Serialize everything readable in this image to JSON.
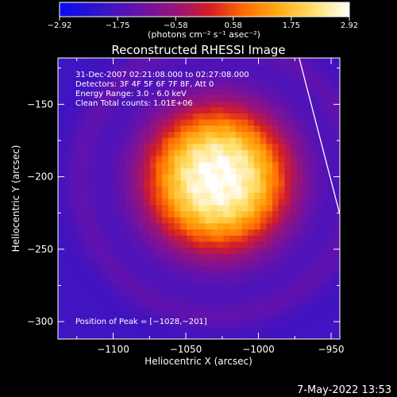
{
  "chart_data": {
    "type": "heatmap",
    "title": "Reconstructed RHESSI Image",
    "xlabel": "Heliocentric X (arcsec)",
    "ylabel": "Heliocentric Y (arcsec)",
    "xlim": [
      -1138,
      -944
    ],
    "ylim": [
      -312,
      -118
    ],
    "x_ticks": [
      -1100,
      -1050,
      -1000,
      -950
    ],
    "x_tick_labels": [
      "−1100",
      "−1050",
      "−1000",
      "−950"
    ],
    "y_ticks": [
      -150,
      -200,
      -250,
      -300
    ],
    "y_tick_labels": [
      "−150",
      "−200",
      "−250",
      "−300"
    ],
    "colorbar": {
      "min": -2.92,
      "max": 2.92,
      "tick_values": [
        -2.92,
        -1.75,
        -0.58,
        0.58,
        1.75,
        2.92
      ],
      "tick_labels": [
        "−2.92",
        "−1.75",
        "−0.58",
        "0.58",
        "1.75",
        "2.92"
      ],
      "unit_label": "(photons cm⁻² s⁻¹ asec⁻²)"
    },
    "source": {
      "peak_x": -1028,
      "peak_y": -201,
      "width_arcsec": 50,
      "peak_value": 2.92,
      "background_value": -1.9
    },
    "limb_line": [
      [
        -972,
        -118
      ],
      [
        -944,
        -226
      ]
    ],
    "annotations": [
      "31-Dec-2007 02:21:08.000 to 02:27:08.000",
      "Detectors: 3F 4F 5F 6F 7F 8F, Att 0",
      "Energy Range: 3.0 - 6.0 keV",
      "Clean     Total counts: 1.01E+06"
    ],
    "peak_label": "Position of Peak = [−1028,−201]",
    "timestamp": "7-May-2022 13:53",
    "colors": {
      "background": "#000000",
      "axes": "#ffffff",
      "limb": "#ffffff"
    }
  }
}
